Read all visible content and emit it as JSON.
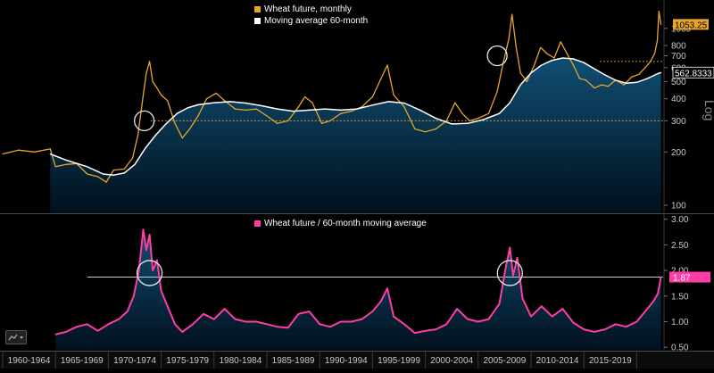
{
  "colors": {
    "background": "#000000",
    "wheat": "#e8a52a",
    "ma": "#ffffff",
    "ratio": "#ff3ea5",
    "fill_top": "#0f4e73",
    "fill_bottom": "#02101d",
    "ref_line_top": "#e8a52a",
    "ref_line_bottom": "#cccccc",
    "grid": "#2a2a2a",
    "scale_text": "#c8c8c8"
  },
  "chart_data": [
    {
      "type": "line",
      "panel": "top",
      "scale": "log",
      "scale_label": "Log",
      "ylim": [
        90,
        1350
      ],
      "yticks": [
        100,
        200,
        300,
        400,
        500,
        600,
        700,
        800,
        1000
      ],
      "ytick_labels": [
        "100",
        "200",
        "300",
        "400",
        "500",
        "600",
        "700",
        "800",
        "1000"
      ],
      "series": [
        {
          "name": "Wheat future, monthly",
          "color": "#e8a52a",
          "x": [
            1960.0,
            1961.5,
            1963.0,
            1964.5,
            1965.0,
            1966.0,
            1967.0,
            1968.0,
            1969.0,
            1969.8,
            1970.5,
            1971.5,
            1972.3,
            1972.8,
            1973.3,
            1973.6,
            1973.9,
            1974.2,
            1974.6,
            1975.0,
            1975.6,
            1976.3,
            1977.0,
            1977.7,
            1978.5,
            1979.3,
            1980.2,
            1981.0,
            1982.0,
            1983.0,
            1984.0,
            1985.0,
            1986.0,
            1987.0,
            1988.0,
            1988.6,
            1989.3,
            1990.2,
            1991.0,
            1992.0,
            1993.0,
            1994.0,
            1995.0,
            1995.8,
            1996.4,
            1997.0,
            1998.0,
            1999.0,
            2000.0,
            2001.0,
            2002.0,
            2002.8,
            2003.5,
            2004.2,
            2005.0,
            2006.0,
            2006.8,
            2007.4,
            2007.9,
            2008.2,
            2008.6,
            2009.0,
            2009.6,
            2010.3,
            2010.9,
            2011.5,
            2012.2,
            2012.8,
            2013.4,
            2014.0,
            2014.6,
            2015.2,
            2016.0,
            2016.7,
            2017.3,
            2018.0,
            2018.8,
            2019.5,
            2020.2,
            2020.8,
            2021.3,
            2021.7,
            2021.95,
            2022.1,
            2022.3
          ],
          "y": [
            195,
            205,
            200,
            208,
            165,
            170,
            172,
            150,
            145,
            135,
            158,
            160,
            185,
            250,
            420,
            560,
            650,
            500,
            460,
            420,
            390,
            290,
            240,
            270,
            320,
            400,
            430,
            390,
            350,
            345,
            350,
            320,
            290,
            300,
            360,
            410,
            380,
            290,
            300,
            330,
            340,
            360,
            410,
            520,
            620,
            420,
            360,
            270,
            260,
            270,
            300,
            380,
            330,
            300,
            310,
            330,
            440,
            650,
            870,
            1200,
            780,
            560,
            500,
            620,
            780,
            720,
            680,
            840,
            720,
            620,
            520,
            510,
            460,
            480,
            470,
            510,
            480,
            530,
            550,
            600,
            650,
            720,
            850,
            1250,
            1053.25
          ]
        },
        {
          "name": "Moving average 60-month",
          "color": "#ffffff",
          "x": [
            1964.5,
            1966.0,
            1968.0,
            1969.5,
            1970.5,
            1971.5,
            1972.5,
            1973.5,
            1974.5,
            1975.5,
            1976.5,
            1977.5,
            1978.5,
            1980.0,
            1981.5,
            1983.0,
            1984.5,
            1986.0,
            1987.5,
            1989.0,
            1990.5,
            1992.0,
            1993.5,
            1995.0,
            1996.5,
            1998.0,
            1999.5,
            2001.0,
            2002.5,
            2004.0,
            2005.5,
            2007.0,
            2008.0,
            2009.0,
            2010.0,
            2011.0,
            2012.0,
            2013.0,
            2014.0,
            2015.0,
            2016.0,
            2017.0,
            2018.0,
            2019.0,
            2020.0,
            2021.0,
            2022.0,
            2022.3
          ],
          "y": [
            195,
            180,
            165,
            150,
            148,
            152,
            170,
            210,
            250,
            290,
            330,
            355,
            370,
            380,
            385,
            378,
            365,
            350,
            340,
            345,
            350,
            345,
            350,
            368,
            385,
            378,
            345,
            310,
            288,
            290,
            305,
            330,
            380,
            480,
            560,
            620,
            660,
            680,
            672,
            640,
            590,
            545,
            510,
            490,
            495,
            520,
            555,
            562.8333
          ]
        }
      ],
      "value_labels": [
        {
          "text": "1053.25",
          "value": 1053.25,
          "series": "Wheat future, monthly"
        },
        {
          "text": "562.8333",
          "value": 562.8333,
          "series": "Moving average 60-month"
        }
      ],
      "reference_lines": [
        {
          "value": 300,
          "from_x": 1974.0,
          "style": "dotted"
        },
        {
          "value": 650,
          "from_x": 2016.5,
          "style": "dotted"
        }
      ],
      "markers": [
        {
          "shape": "circle",
          "x": 1973.4,
          "y": 300
        },
        {
          "shape": "circle",
          "x": 2006.8,
          "y": 700
        }
      ]
    },
    {
      "type": "area",
      "panel": "bottom",
      "ylim": [
        0.45,
        3.1
      ],
      "yticks": [
        0.5,
        1.0,
        1.5,
        2.0,
        2.5,
        3.0
      ],
      "ytick_labels": [
        "0.50",
        "1.00",
        "1.50",
        "2.00",
        "2.50",
        "3.00"
      ],
      "series": [
        {
          "name": "Wheat future / 60-month moving average",
          "color": "#ff3ea5",
          "x": [
            1965.0,
            1966.0,
            1967.0,
            1968.0,
            1969.0,
            1970.0,
            1971.0,
            1971.8,
            1972.4,
            1972.9,
            1973.3,
            1973.6,
            1973.9,
            1974.2,
            1974.6,
            1975.0,
            1975.6,
            1976.3,
            1977.0,
            1978.0,
            1979.0,
            1980.0,
            1981.0,
            1982.0,
            1983.0,
            1984.0,
            1985.0,
            1986.0,
            1987.0,
            1988.0,
            1989.0,
            1990.0,
            1991.0,
            1992.0,
            1993.0,
            1994.0,
            1995.0,
            1995.8,
            1996.4,
            1997.0,
            1998.0,
            1999.0,
            2000.0,
            2001.0,
            2002.0,
            2003.0,
            2004.0,
            2005.0,
            2006.0,
            2007.0,
            2007.6,
            2008.0,
            2008.3,
            2008.7,
            2009.2,
            2010.0,
            2011.0,
            2012.0,
            2013.0,
            2014.0,
            2015.0,
            2016.0,
            2017.0,
            2018.0,
            2019.0,
            2020.0,
            2021.0,
            2021.6,
            2022.0,
            2022.3
          ],
          "y": [
            0.75,
            0.8,
            0.9,
            0.95,
            0.82,
            0.95,
            1.05,
            1.2,
            1.5,
            2.0,
            2.8,
            2.4,
            2.7,
            2.0,
            2.2,
            1.6,
            1.3,
            0.95,
            0.8,
            0.95,
            1.15,
            1.05,
            1.25,
            1.05,
            1.0,
            1.0,
            0.95,
            0.9,
            0.88,
            1.15,
            1.2,
            0.95,
            0.9,
            1.0,
            1.0,
            1.05,
            1.2,
            1.4,
            1.65,
            1.1,
            0.95,
            0.78,
            0.82,
            0.85,
            0.95,
            1.25,
            1.05,
            1.0,
            1.05,
            1.35,
            2.05,
            2.45,
            1.9,
            2.25,
            1.45,
            1.1,
            1.3,
            1.1,
            1.25,
            0.98,
            0.85,
            0.8,
            0.85,
            0.95,
            0.9,
            1.0,
            1.25,
            1.4,
            1.55,
            1.87
          ]
        }
      ],
      "value_labels": [
        {
          "text": "1.87",
          "value": 1.87
        }
      ],
      "reference_lines": [
        {
          "value": 1.87,
          "from_x": 1968.0,
          "style": "solid"
        }
      ],
      "markers": [
        {
          "shape": "circle",
          "x": 1973.9,
          "y": 1.95
        },
        {
          "shape": "circle",
          "x": 2008.0,
          "y": 1.95
        }
      ]
    }
  ],
  "x_axis": {
    "range": [
      1960,
      2022.5
    ],
    "period_labels": [
      {
        "label": "1960-1964",
        "from": 1960,
        "to": 1965
      },
      {
        "label": "1965-1969",
        "from": 1965,
        "to": 1970
      },
      {
        "label": "1970-1974",
        "from": 1970,
        "to": 1975
      },
      {
        "label": "1975-1979",
        "from": 1975,
        "to": 1980
      },
      {
        "label": "1980-1984",
        "from": 1980,
        "to": 1985
      },
      {
        "label": "1985-1989",
        "from": 1985,
        "to": 1990
      },
      {
        "label": "1990-1994",
        "from": 1990,
        "to": 1995
      },
      {
        "label": "1995-1999",
        "from": 1995,
        "to": 2000
      },
      {
        "label": "2000-2004",
        "from": 2000,
        "to": 2005
      },
      {
        "label": "2005-2009",
        "from": 2005,
        "to": 2010
      },
      {
        "label": "2010-2014",
        "from": 2010,
        "to": 2015
      },
      {
        "label": "2015-2019",
        "from": 2015,
        "to": 2020
      },
      {
        "label": "",
        "from": 2020,
        "to": 2022.5
      }
    ]
  },
  "legend_top": [
    {
      "label": "Wheat future, monthly",
      "color": "#e8a52a"
    },
    {
      "label": "Moving average 60-month",
      "color": "#ffffff"
    }
  ],
  "legend_bottom": [
    {
      "label": "Wheat future / 60-month moving average",
      "color": "#ff3ea5"
    }
  ],
  "toolbar": {
    "icon": "chart-options-icon"
  }
}
